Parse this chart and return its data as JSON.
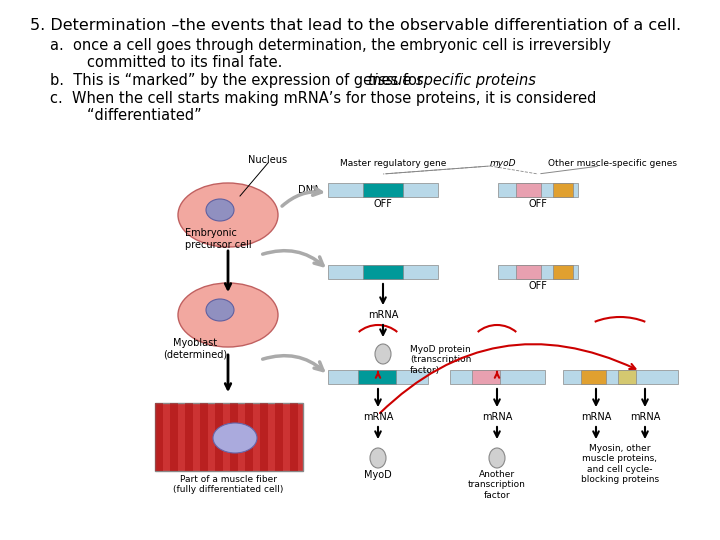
{
  "title_line": "5. Determination –the events that lead to the observable differentiation of a cell.",
  "point_a_line1": "a.  once a cell goes through determination, the embryonic cell is irreversibly",
  "point_a_line2": "        committed to its final fate.",
  "point_b_normal": "b.  This is “marked” by the expression of genes for ",
  "point_b_italic": "tissue specific proteins",
  "point_c_line1": "c.  When the cell starts making mRNA’s for those proteins, it is considered",
  "point_c_line2": "        “differentiated”",
  "bg_color": "#ffffff",
  "text_color": "#000000",
  "title_fs": 11.5,
  "body_fs": 10.5,
  "small_fs": 7.0,
  "tiny_fs": 6.0
}
